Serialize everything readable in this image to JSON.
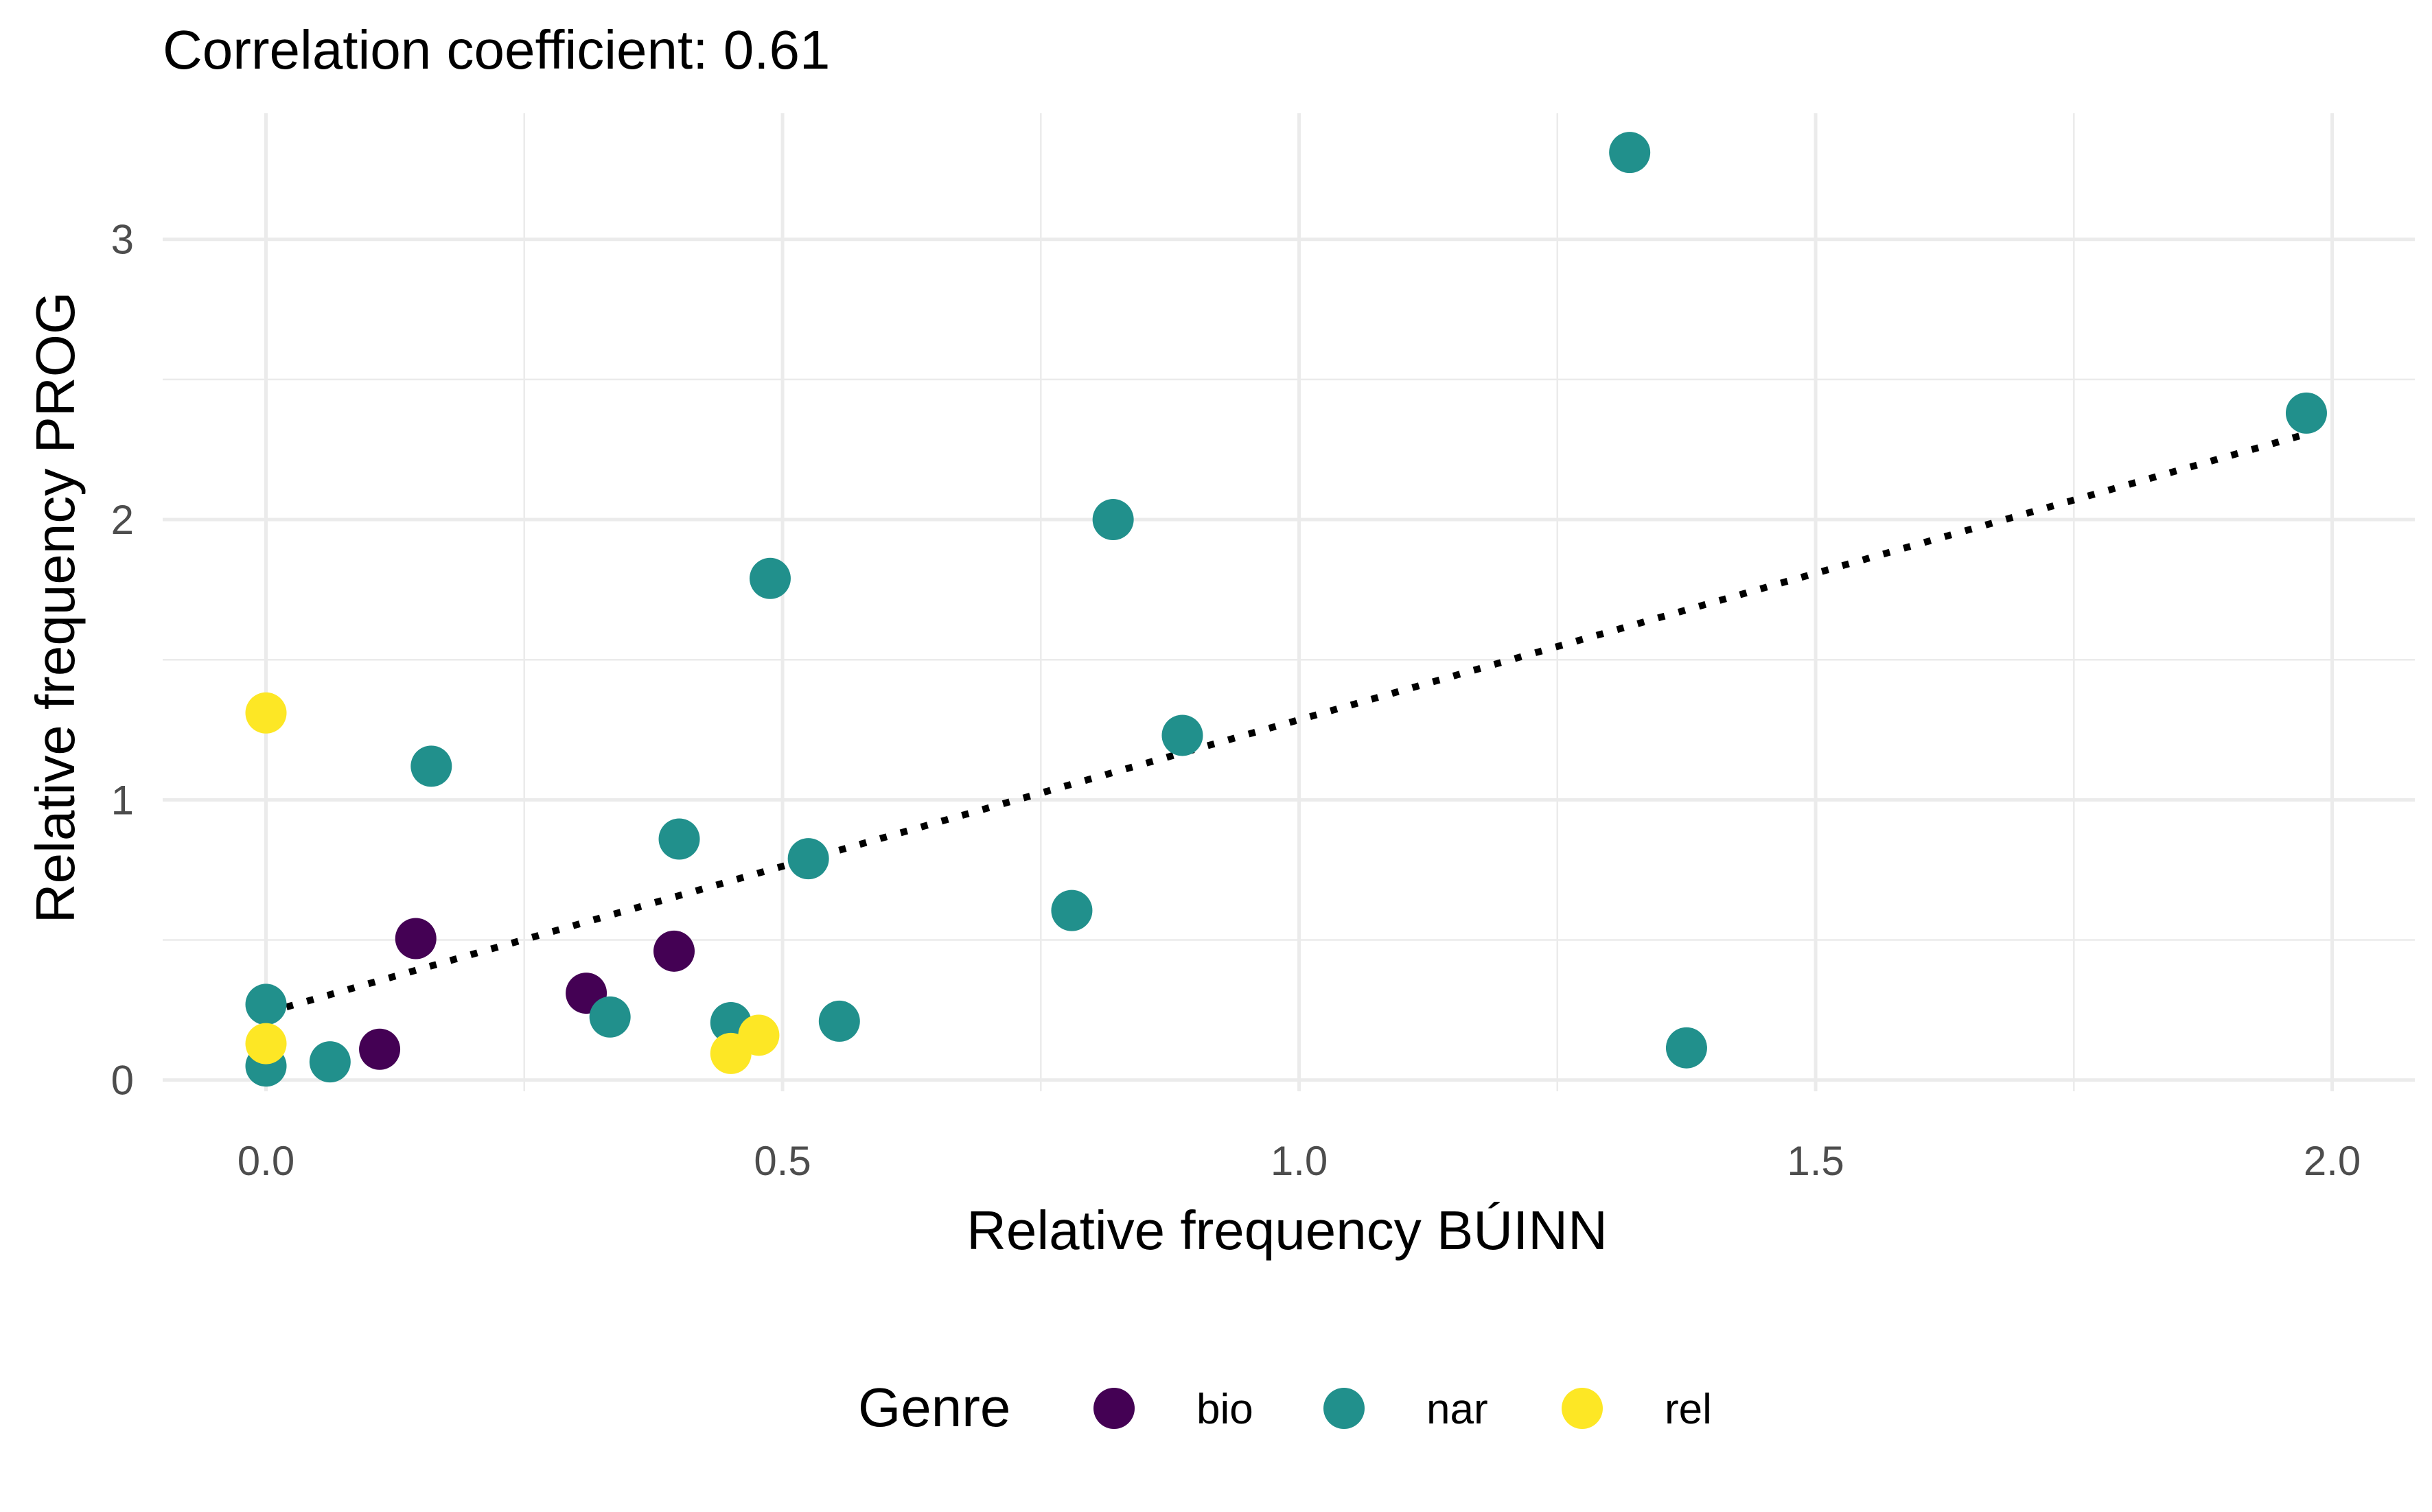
{
  "chart_data": {
    "type": "scatter",
    "title": "Correlation coefficient: 0.61",
    "xlabel": "Relative frequency BÚINN",
    "ylabel": "Relative frequency PROG",
    "xlim": [
      -0.1,
      2.08
    ],
    "ylim": [
      -0.04,
      3.45
    ],
    "x_ticks": [
      0.0,
      0.5,
      1.0,
      1.5,
      2.0
    ],
    "x_tick_labels": [
      "0.0",
      "0.5",
      "1.0",
      "1.5",
      "2.0"
    ],
    "y_ticks": [
      0,
      1,
      2,
      3
    ],
    "y_tick_labels": [
      "0",
      "1",
      "2",
      "3"
    ],
    "grid": true,
    "legend": {
      "title": "Genre",
      "position": "bottom"
    },
    "trend_line": {
      "style": "dotted",
      "color": "#000000",
      "from": [
        0.0,
        0.24
      ],
      "to": [
        1.97,
        2.3
      ]
    },
    "series": [
      {
        "name": "bio",
        "color": "#440154",
        "points": [
          {
            "x": 0.11,
            "y": 0.11
          },
          {
            "x": 0.145,
            "y": 0.505
          },
          {
            "x": 0.31,
            "y": 0.31
          },
          {
            "x": 0.395,
            "y": 0.46
          }
        ]
      },
      {
        "name": "nar",
        "color": "#21908C",
        "points": [
          {
            "x": 0.0,
            "y": 0.27
          },
          {
            "x": 0.0,
            "y": 0.05
          },
          {
            "x": 0.062,
            "y": 0.065
          },
          {
            "x": 0.16,
            "y": 1.12
          },
          {
            "x": 0.333,
            "y": 0.225
          },
          {
            "x": 0.4,
            "y": 0.86
          },
          {
            "x": 0.45,
            "y": 0.205
          },
          {
            "x": 0.488,
            "y": 1.79
          },
          {
            "x": 0.525,
            "y": 0.79
          },
          {
            "x": 0.555,
            "y": 0.21
          },
          {
            "x": 0.78,
            "y": 0.605
          },
          {
            "x": 0.82,
            "y": 2.0
          },
          {
            "x": 0.887,
            "y": 1.23
          },
          {
            "x": 1.32,
            "y": 3.31
          },
          {
            "x": 1.375,
            "y": 0.115
          },
          {
            "x": 1.975,
            "y": 2.38
          }
        ]
      },
      {
        "name": "rel",
        "color": "#FDE725",
        "points": [
          {
            "x": 0.0,
            "y": 1.31
          },
          {
            "x": 0.0,
            "y": 0.13
          },
          {
            "x": 0.45,
            "y": 0.095
          },
          {
            "x": 0.477,
            "y": 0.16
          }
        ]
      }
    ]
  }
}
